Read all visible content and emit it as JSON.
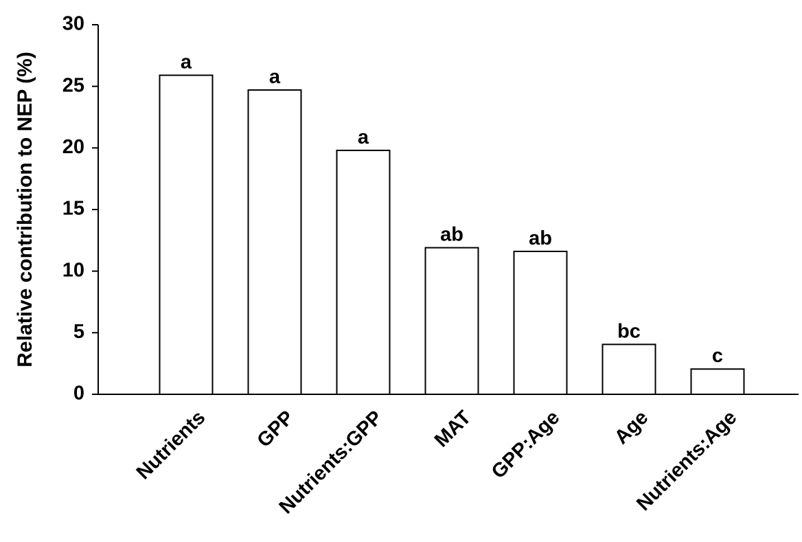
{
  "chart_data": {
    "type": "bar",
    "categories": [
      "Nutrients",
      "GPP",
      "Nutrients:GPP",
      "MAT",
      "GPP:Age",
      "Age",
      "Nutrients:Age"
    ],
    "values": [
      25.9,
      24.7,
      19.8,
      11.9,
      11.6,
      4.05,
      2.05
    ],
    "bar_labels": [
      "a",
      "a",
      "a",
      "ab",
      "ab",
      "bc",
      "c"
    ],
    "title": "",
    "xlabel": "",
    "ylabel": "Relative contribution to NEP (%)",
    "ylim": [
      0,
      30
    ],
    "yticks": [
      "0",
      "5",
      "10",
      "15",
      "20",
      "25",
      "30"
    ],
    "grid": false,
    "legend": "none",
    "bar_fill": "#ffffff",
    "bar_stroke": "#000000"
  }
}
